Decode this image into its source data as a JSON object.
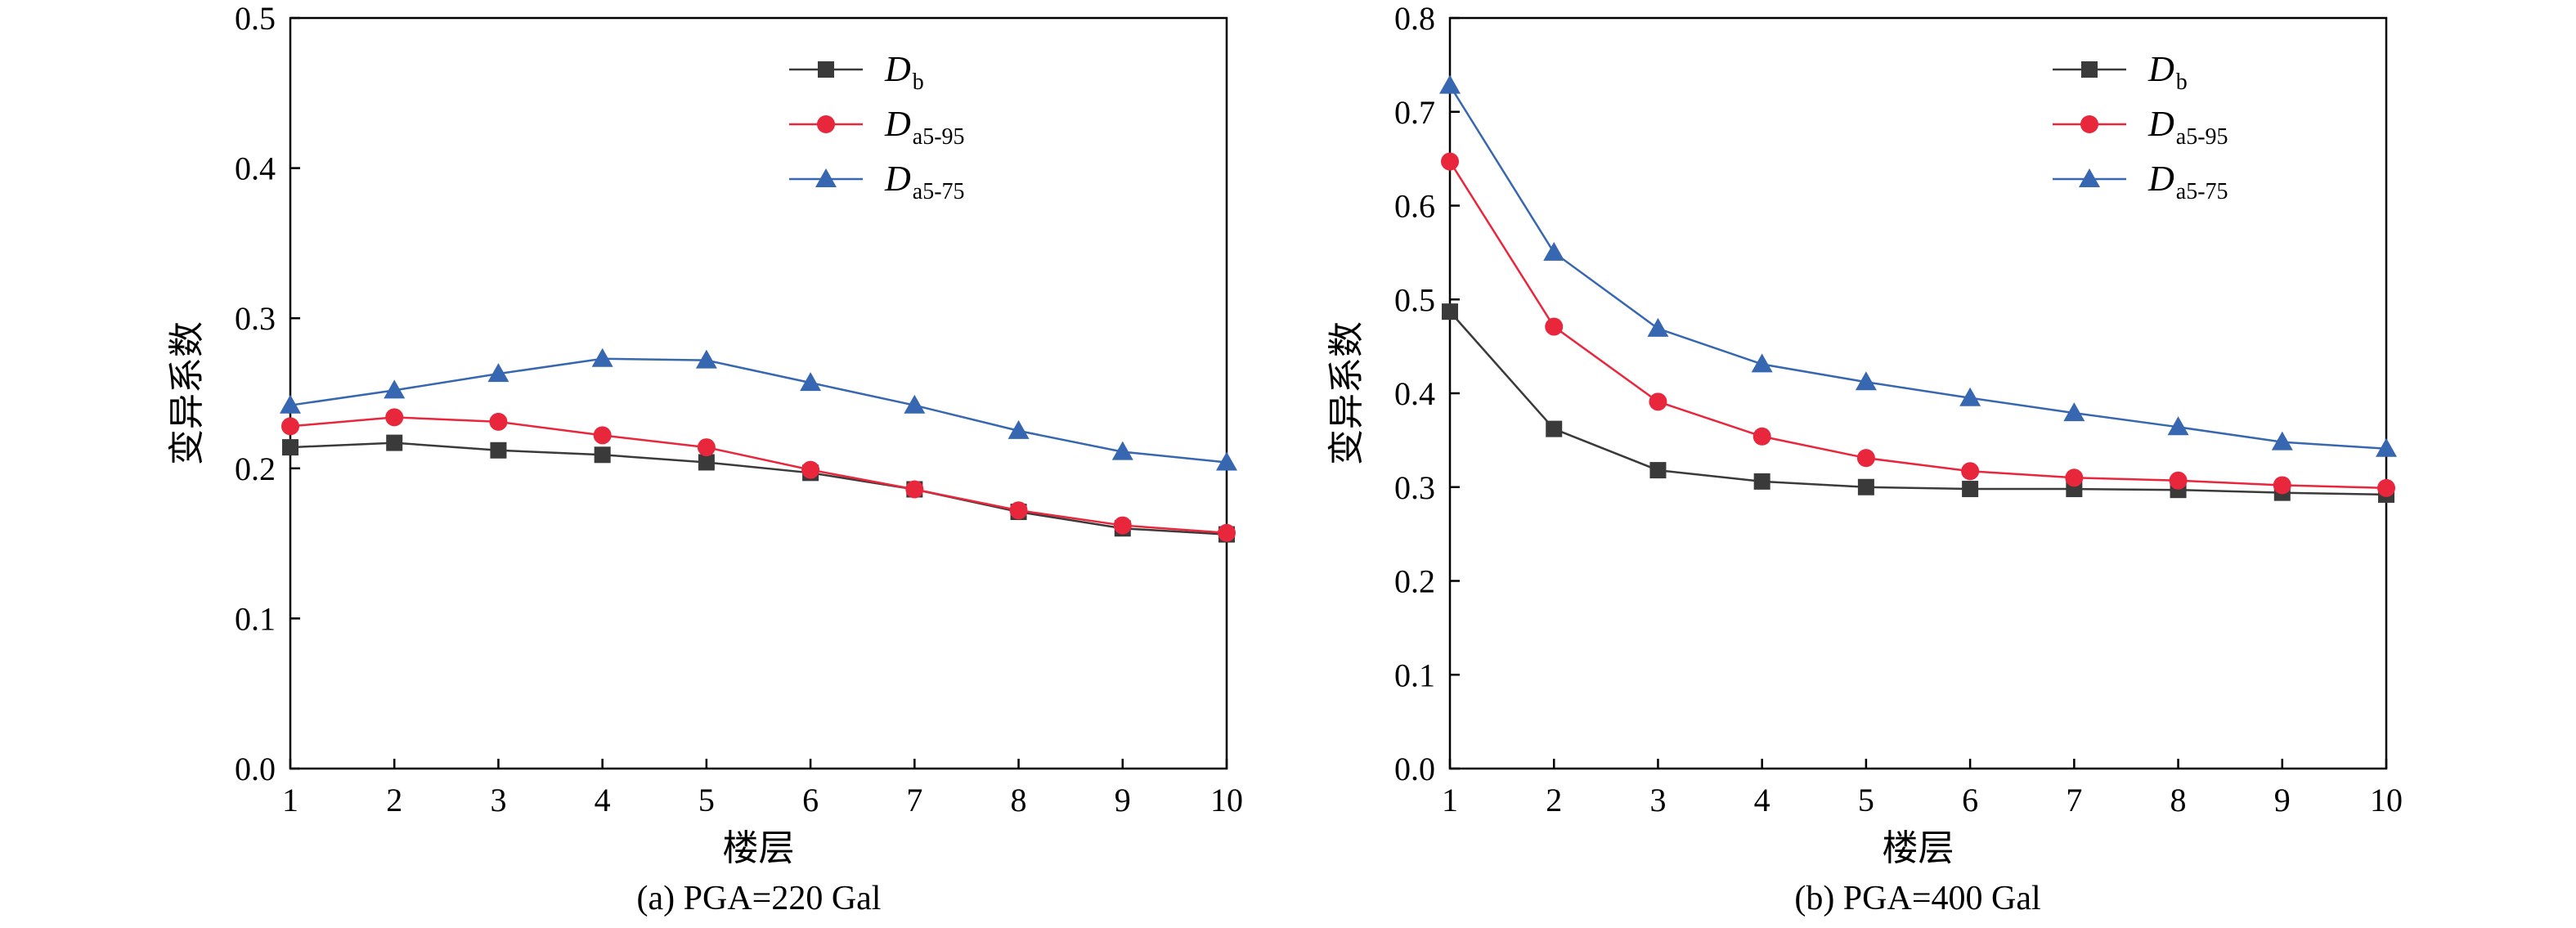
{
  "chart_data": [
    {
      "type": "line",
      "caption": "(a) PGA=220 Gal",
      "xlabel": "楼层",
      "ylabel": "变异系数",
      "x": [
        1,
        2,
        3,
        4,
        5,
        6,
        7,
        8,
        9,
        10
      ],
      "xticks": [
        "1",
        "2",
        "3",
        "4",
        "5",
        "6",
        "7",
        "8",
        "9",
        "10"
      ],
      "xlim": [
        1,
        10
      ],
      "ylim": [
        0,
        0.5
      ],
      "yticks": [
        "0.0",
        "0.1",
        "0.2",
        "0.3",
        "0.4",
        "0.5"
      ],
      "grid": false,
      "legend_position": "top-right",
      "series": [
        {
          "name": "D",
          "sub": "b",
          "marker": "square",
          "color": "#3a3a3a",
          "values": [
            0.214,
            0.217,
            0.212,
            0.209,
            0.204,
            0.197,
            0.186,
            0.171,
            0.16,
            0.156
          ]
        },
        {
          "name": "D",
          "sub": "a5-95",
          "marker": "circle",
          "color": "#e8273c",
          "values": [
            0.228,
            0.234,
            0.231,
            0.222,
            0.214,
            0.199,
            0.186,
            0.172,
            0.162,
            0.157
          ]
        },
        {
          "name": "D",
          "sub": "a5-75",
          "marker": "triangle",
          "color": "#3767b1",
          "values": [
            0.242,
            0.252,
            0.263,
            0.273,
            0.272,
            0.257,
            0.242,
            0.225,
            0.211,
            0.204
          ]
        }
      ]
    },
    {
      "type": "line",
      "caption": "(b) PGA=400 Gal",
      "xlabel": "楼层",
      "ylabel": "变异系数",
      "x": [
        1,
        2,
        3,
        4,
        5,
        6,
        7,
        8,
        9,
        10
      ],
      "xticks": [
        "1",
        "2",
        "3",
        "4",
        "5",
        "6",
        "7",
        "8",
        "9",
        "10"
      ],
      "xlim": [
        1,
        10
      ],
      "ylim": [
        0,
        0.8
      ],
      "yticks": [
        "0.0",
        "0.1",
        "0.2",
        "0.3",
        "0.4",
        "0.5",
        "0.6",
        "0.7",
        "0.8"
      ],
      "grid": false,
      "legend_position": "top-right",
      "series": [
        {
          "name": "D",
          "sub": "b",
          "marker": "square",
          "color": "#3a3a3a",
          "values": [
            0.487,
            0.362,
            0.318,
            0.306,
            0.3,
            0.298,
            0.298,
            0.297,
            0.294,
            0.292
          ]
        },
        {
          "name": "D",
          "sub": "a5-95",
          "marker": "circle",
          "color": "#e8273c",
          "values": [
            0.647,
            0.471,
            0.391,
            0.354,
            0.331,
            0.317,
            0.31,
            0.307,
            0.302,
            0.299
          ]
        },
        {
          "name": "D",
          "sub": "a5-75",
          "marker": "triangle",
          "color": "#3767b1",
          "values": [
            0.728,
            0.55,
            0.469,
            0.431,
            0.412,
            0.395,
            0.379,
            0.364,
            0.348,
            0.341
          ]
        }
      ]
    }
  ]
}
